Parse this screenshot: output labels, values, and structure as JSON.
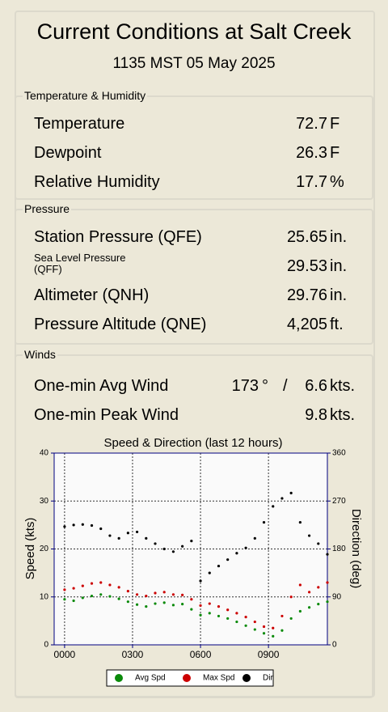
{
  "header": {
    "title": "Current Conditions at Salt Creek",
    "subtitle": "1135 MST 05 May 2025"
  },
  "sections": [
    {
      "title": "Temperature & Humidity",
      "rows": [
        {
          "label": "Temperature",
          "value": "72.7",
          "unit": "F"
        },
        {
          "label": "Dewpoint",
          "value": "26.3",
          "unit": "F"
        },
        {
          "label": "Relative Humidity",
          "value": "17.7",
          "unit": "%"
        }
      ]
    },
    {
      "title": "Pressure",
      "rows": [
        {
          "label": "Station Pressure (QFE)",
          "value": "25.65",
          "unit": "in."
        },
        {
          "label": "Sea Level Pressure\n (QFF)",
          "value": "29.53",
          "unit": "in."
        },
        {
          "label": "Altimeter (QNH)",
          "value": "29.76",
          "unit": "in."
        },
        {
          "label": "Pressure Altitude (QNE)",
          "value": "4,205",
          "unit": "ft."
        }
      ]
    },
    {
      "title": "Winds",
      "rows": [
        {
          "label": "One-min Avg Wind",
          "direction": "173",
          "direction_unit": "°",
          "separator": "/",
          "value": "6.6",
          "unit": "kts."
        },
        {
          "label": "One-min Peak Wind",
          "value": "9.8",
          "unit": "kts."
        }
      ]
    }
  ],
  "chart_data": {
    "type": "scatter",
    "title": "Speed & Direction (last 12 hours)",
    "y_label": "Speed (kts)",
    "y2_label": "Direction (deg)",
    "grid": true,
    "x": [
      0,
      0.4,
      0.8,
      1.2,
      1.6,
      2.0,
      2.4,
      2.8,
      3.2,
      3.6,
      4.0,
      4.4,
      4.8,
      5.2,
      5.6,
      6.0,
      6.4,
      6.8,
      7.2,
      7.6,
      8.0,
      8.4,
      8.8,
      9.2,
      9.6,
      10.0,
      10.4,
      10.8,
      11.2,
      11.6
    ],
    "xlim": [
      -0.46,
      11.6
    ],
    "xticks": [
      {
        "value": 0,
        "label": "0000"
      },
      {
        "value": 3,
        "label": "0300"
      },
      {
        "value": 6,
        "label": "0600"
      },
      {
        "value": 9,
        "label": "0900"
      }
    ],
    "ylim": [
      0,
      40
    ],
    "yticks": [
      0,
      10,
      20,
      30,
      40
    ],
    "y2lim": [
      0,
      360
    ],
    "y2ticks": [
      0,
      90,
      180,
      270,
      360
    ],
    "series": [
      {
        "name": "Avg Spd",
        "color": "#0a8a0a",
        "values": [
          9.5,
          9.2,
          9.8,
          10.2,
          10.5,
          10.1,
          9.6,
          9.0,
          8.4,
          8.0,
          8.6,
          8.8,
          8.3,
          8.5,
          7.4,
          6.2,
          6.6,
          6.0,
          5.5,
          4.8,
          4.0,
          3.2,
          2.4,
          1.8,
          3.0,
          5.5,
          7.0,
          7.8,
          8.5,
          9.0
        ]
      },
      {
        "name": "Max Spd",
        "color": "#cc0000",
        "values": [
          11.5,
          11.8,
          12.3,
          12.8,
          13.0,
          12.5,
          12.0,
          11.2,
          10.5,
          10.2,
          10.8,
          11.0,
          10.5,
          10.4,
          9.5,
          8.2,
          8.6,
          8.0,
          7.3,
          6.6,
          5.8,
          4.8,
          3.8,
          3.5,
          6.0,
          10.0,
          12.5,
          11.0,
          12.0,
          13.0
        ]
      },
      {
        "name": "Dir",
        "color": "#000000",
        "axis": "y2",
        "values": [
          222,
          225,
          226,
          224,
          218,
          205,
          200,
          210,
          212,
          200,
          190,
          180,
          175,
          185,
          195,
          120,
          135,
          148,
          160,
          172,
          182,
          200,
          230,
          260,
          275,
          285,
          230,
          205,
          190,
          170
        ]
      }
    ]
  }
}
